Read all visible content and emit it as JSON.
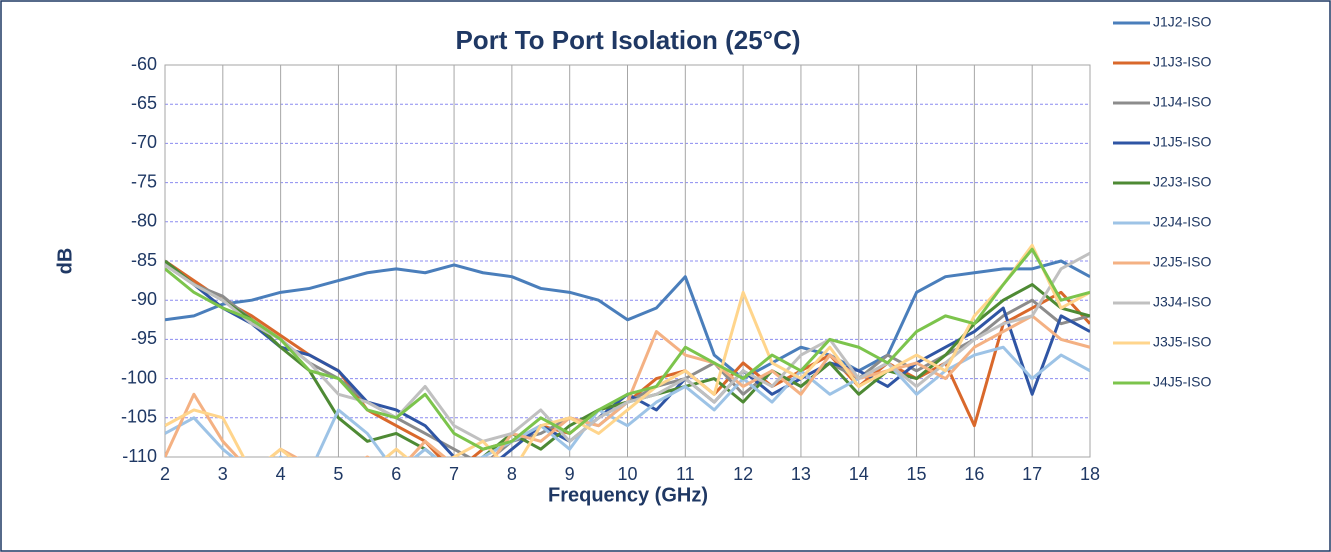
{
  "chart_data": {
    "type": "line",
    "title": "Port To Port Isolation (25°C)",
    "x_label": "Frequency (GHz)",
    "y_label": "dB",
    "x": [
      2,
      2.5,
      3,
      3.5,
      4,
      4.5,
      5,
      5.5,
      6,
      6.5,
      7,
      7.5,
      8,
      8.5,
      9,
      9.5,
      10,
      10.5,
      11,
      11.5,
      12,
      12.5,
      13,
      13.5,
      14,
      14.5,
      15,
      15.5,
      16,
      16.5,
      17,
      17.5,
      18
    ],
    "xlim": [
      2,
      18
    ],
    "xticks": [
      2,
      3,
      4,
      5,
      6,
      7,
      8,
      9,
      10,
      11,
      12,
      13,
      14,
      15,
      16,
      17,
      18
    ],
    "ylim": [
      -110,
      -60
    ],
    "yticks": [
      -60,
      -65,
      -70,
      -75,
      -80,
      -85,
      -90,
      -95,
      -100,
      -105,
      -110
    ],
    "grid": true,
    "legend": "right",
    "series": [
      {
        "name": "J1J2-ISO",
        "color": "#4a7ebb",
        "values": [
          -92.5,
          -92,
          -90.5,
          -90,
          -89,
          -88.5,
          -87.5,
          -86.5,
          -86,
          -86.5,
          -85.5,
          -86.5,
          -87,
          -88.5,
          -89,
          -90,
          -92.5,
          -91,
          -87,
          -97,
          -100,
          -98,
          -96,
          -97,
          -99,
          -97,
          -89,
          -87,
          -86.5,
          -86,
          -86,
          -85,
          -87
        ]
      },
      {
        "name": "J1J3-ISO",
        "color": "#d9682b",
        "values": [
          -85,
          -87.5,
          -90,
          -92,
          -94.5,
          -97,
          -99,
          -104,
          -106,
          -108,
          -112,
          -109,
          -108,
          -106,
          -107,
          -104,
          -103,
          -100,
          -99,
          -102,
          -98,
          -101,
          -99,
          -97,
          -101,
          -98,
          -100,
          -98,
          -106,
          -93,
          -91,
          -89,
          -93
        ]
      },
      {
        "name": "J1J4-ISO",
        "color": "#8c8c8c",
        "values": [
          -85.5,
          -88,
          -89.5,
          -92.5,
          -95,
          -98,
          -100,
          -103,
          -105,
          -107,
          -109,
          -111,
          -108,
          -107,
          -105,
          -106,
          -103,
          -101,
          -100,
          -98,
          -102,
          -99,
          -101,
          -98,
          -100,
          -97,
          -99,
          -97,
          -95,
          -92,
          -90,
          -93,
          -92
        ]
      },
      {
        "name": "J1J5-ISO",
        "color": "#2f55a4",
        "values": [
          -85,
          -88,
          -91,
          -93,
          -96,
          -97,
          -99,
          -103,
          -104,
          -106,
          -110,
          -112,
          -109,
          -106,
          -108,
          -105,
          -102,
          -104,
          -100,
          -103,
          -99,
          -102,
          -100,
          -98,
          -99,
          -101,
          -98,
          -96,
          -94,
          -91,
          -102,
          -92,
          -94
        ]
      },
      {
        "name": "J2J3-ISO",
        "color": "#4e8a34",
        "values": [
          -85,
          -88,
          -90,
          -92.5,
          -96,
          -99,
          -105,
          -108,
          -107,
          -109,
          -112,
          -110,
          -107,
          -109,
          -106,
          -104,
          -103,
          -102,
          -101,
          -100,
          -103,
          -99,
          -101,
          -98,
          -102,
          -99,
          -100,
          -97,
          -93,
          -90,
          -88,
          -91,
          -92
        ]
      },
      {
        "name": "J2J4-ISO",
        "color": "#9dc3e6",
        "values": [
          -107,
          -105,
          -109,
          -112,
          -110,
          -112,
          -104,
          -107,
          -112,
          -109,
          -112,
          -110,
          -108,
          -106,
          -109,
          -104,
          -106,
          -103,
          -101,
          -104,
          -100,
          -103,
          -99,
          -102,
          -100,
          -98,
          -102,
          -99,
          -97,
          -96,
          -100,
          -97,
          -99
        ]
      },
      {
        "name": "J2J5-ISO",
        "color": "#f4b183",
        "values": [
          -110,
          -102,
          -108,
          -112,
          -109,
          -111,
          -112,
          -110,
          -112,
          -108,
          -111,
          -112,
          -107,
          -108,
          -105,
          -106,
          -103,
          -94,
          -97,
          -98,
          -101,
          -99,
          -102,
          -97,
          -100,
          -99,
          -98,
          -100,
          -96,
          -94,
          -92,
          -95,
          -96
        ]
      },
      {
        "name": "J3J4-ISO",
        "color": "#c0c0c0",
        "values": [
          -85.5,
          -88,
          -90,
          -93,
          -95,
          -98,
          -102,
          -103,
          -105,
          -101,
          -106,
          -108,
          -107,
          -104,
          -108,
          -105,
          -103,
          -102,
          -100,
          -103,
          -99,
          -101,
          -97,
          -95,
          -100,
          -98,
          -101,
          -98,
          -95,
          -93,
          -92,
          -86,
          -84
        ]
      },
      {
        "name": "J3J5-ISO",
        "color": "#ffd58c",
        "values": [
          -106,
          -104,
          -105,
          -112,
          -109,
          -112,
          -111,
          -112,
          -109,
          -112,
          -110,
          -108,
          -112,
          -106,
          -105,
          -107,
          -104,
          -101,
          -99,
          -102,
          -89,
          -98,
          -100,
          -96,
          -101,
          -99,
          -97,
          -99,
          -92,
          -88,
          -83,
          -91,
          -89
        ]
      },
      {
        "name": "J4J5-ISO",
        "color": "#7cc44c",
        "values": [
          -86,
          -89,
          -91,
          -92.5,
          -95,
          -99,
          -100,
          -104,
          -105,
          -102,
          -107,
          -109,
          -108,
          -105,
          -107,
          -104,
          -102,
          -101,
          -96,
          -98,
          -100,
          -97,
          -99,
          -95,
          -96,
          -98,
          -94,
          -92,
          -93,
          -88,
          -83.5,
          -90,
          -89
        ]
      }
    ]
  }
}
